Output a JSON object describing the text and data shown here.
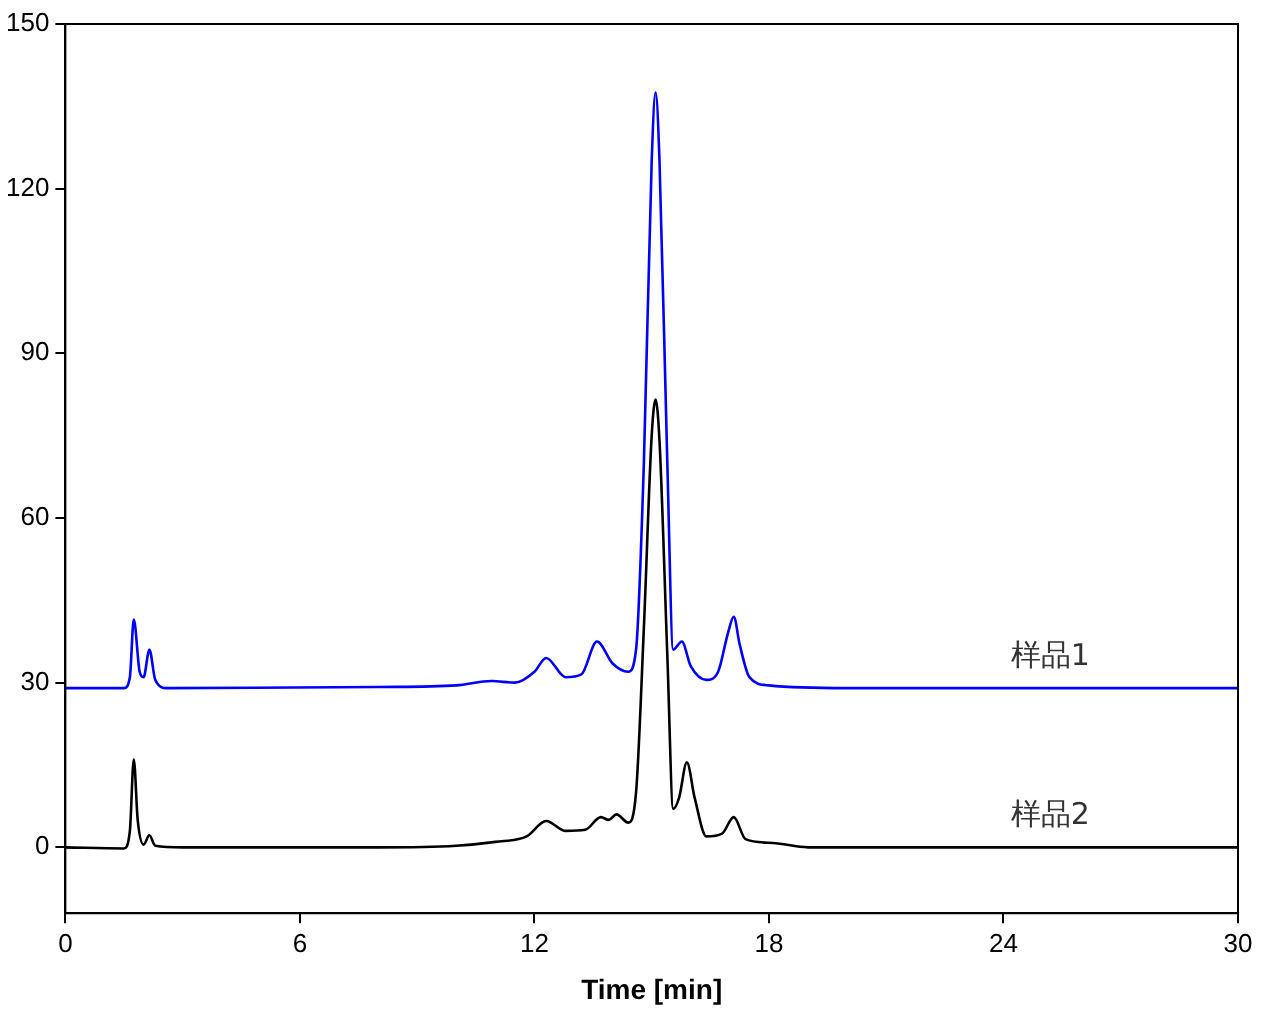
{
  "chart_data": {
    "type": "line",
    "xlabel": "Time [min]",
    "xlim": [
      0,
      30
    ],
    "xticks": [
      0,
      6,
      12,
      18,
      24,
      30
    ],
    "ylim": [
      -12,
      150
    ],
    "yticks": [
      0,
      30,
      60,
      90,
      120,
      150
    ],
    "grid": false,
    "legend": false,
    "marker": "none",
    "line_style": "solid",
    "series": [
      {
        "name": "样品1",
        "color": "#0000ff",
        "x": [
          0,
          1.5,
          1.65,
          1.75,
          1.9,
          2.0,
          2.15,
          2.3,
          2.6,
          8,
          10,
          10.9,
          11.5,
          12.0,
          12.3,
          12.8,
          13.2,
          13.6,
          14.0,
          14.4,
          14.6,
          14.8,
          15.0,
          15.1,
          15.2,
          15.4,
          15.55,
          15.77,
          16.0,
          16.4,
          16.7,
          16.95,
          17.1,
          17.25,
          17.5,
          18,
          20,
          30
        ],
        "values": [
          29,
          29,
          31,
          41.5,
          32,
          31,
          36,
          30.5,
          29,
          29.2,
          29.5,
          30.3,
          30,
          32,
          34.5,
          31,
          31.5,
          37.5,
          33.5,
          32,
          36,
          70,
          125,
          137.5,
          125,
          70,
          36,
          37.5,
          33,
          30.5,
          32,
          39,
          42,
          37,
          31,
          29.5,
          29,
          29
        ]
      },
      {
        "name": "样品2",
        "color": "#000000",
        "x": [
          0,
          1.5,
          1.65,
          1.75,
          1.85,
          2.0,
          2.15,
          2.3,
          3,
          8,
          10,
          11,
          11.8,
          12.3,
          12.8,
          13.3,
          13.7,
          13.9,
          14.1,
          14.4,
          14.6,
          14.8,
          15.0,
          15.1,
          15.2,
          15.4,
          15.55,
          15.7,
          15.9,
          16.1,
          16.4,
          16.8,
          17.1,
          17.4,
          18.1,
          19,
          30
        ],
        "values": [
          0,
          -0.2,
          3,
          16,
          5,
          0.5,
          2.2,
          0.3,
          0,
          0,
          0.3,
          1,
          2,
          4.8,
          3,
          3.2,
          5.5,
          5,
          6,
          4.5,
          10,
          40,
          75,
          81.6,
          74,
          35,
          7,
          9,
          15.5,
          9,
          2,
          2.5,
          5.5,
          1.5,
          0.8,
          0,
          0
        ]
      }
    ]
  }
}
